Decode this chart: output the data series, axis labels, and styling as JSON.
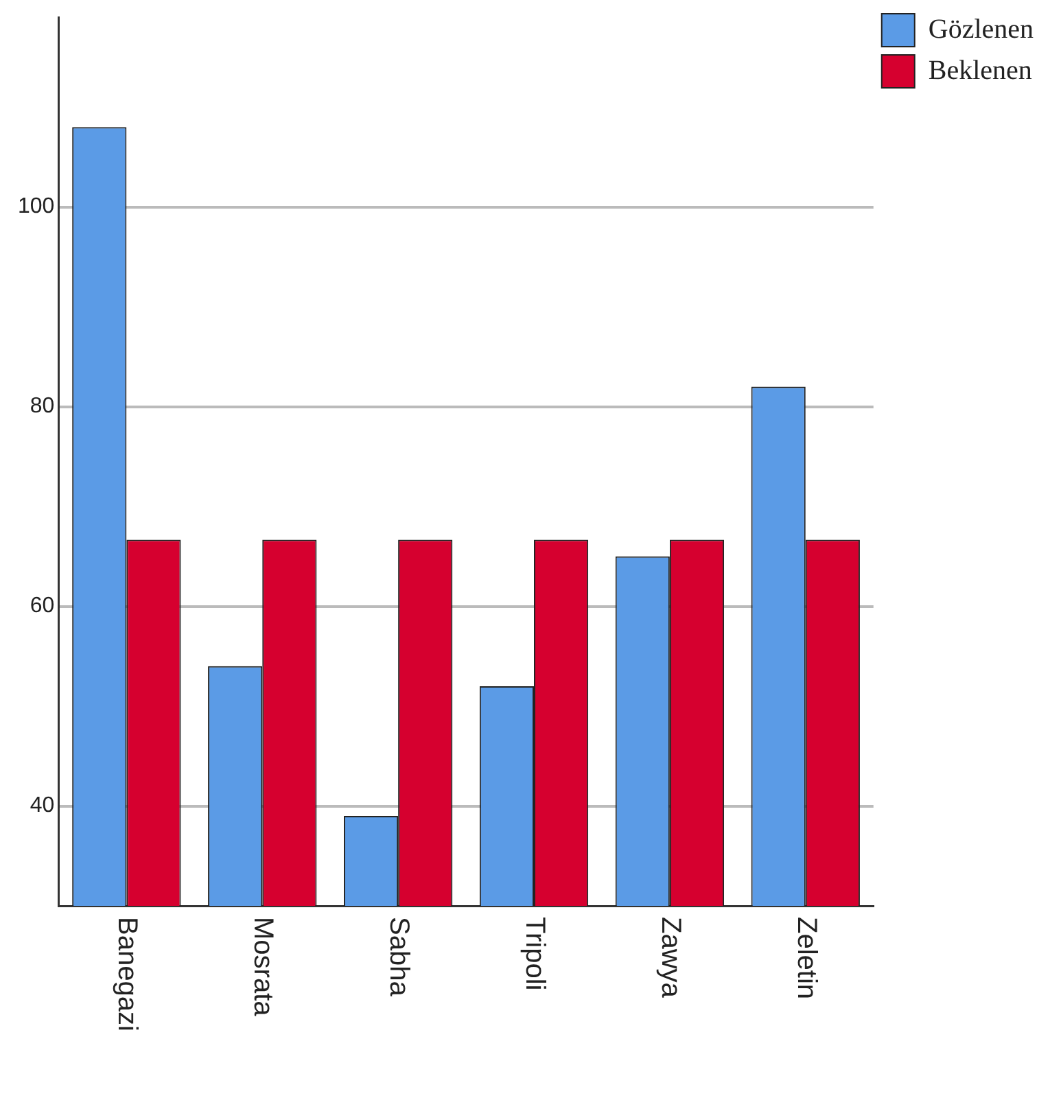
{
  "chart_data": {
    "type": "bar",
    "categories": [
      "Banegazi",
      "Mosrata",
      "Sabha",
      "Tripoli",
      "Zawya",
      "Zeletin"
    ],
    "series": [
      {
        "name": "Gözlenen",
        "color": "#5b9be6",
        "values": [
          108,
          54,
          39,
          52,
          65,
          82
        ]
      },
      {
        "name": "Beklenen",
        "color": "#d6002f",
        "values": [
          66.67,
          66.67,
          66.67,
          66.67,
          66.67,
          66.67
        ]
      }
    ],
    "ylim": [
      30,
      119
    ],
    "yticks": [
      40,
      60,
      80,
      100
    ],
    "grid": "y",
    "legend": "top right"
  }
}
